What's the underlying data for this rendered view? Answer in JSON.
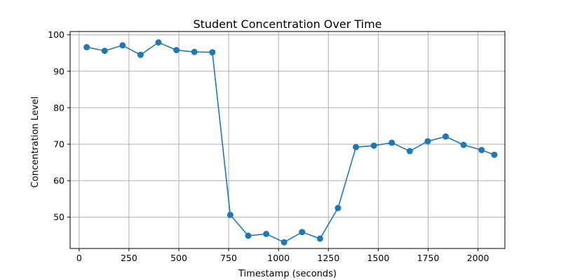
{
  "chart_data": {
    "type": "line",
    "title": "Student Concentration Over Time",
    "xlabel": "Timestamp (seconds)",
    "ylabel": "Concentration Level",
    "xlim": [
      -45,
      2135
    ],
    "ylim": [
      41.4,
      100.9
    ],
    "x_ticks": [
      0,
      250,
      500,
      750,
      1000,
      1250,
      1500,
      1750,
      2000
    ],
    "y_ticks": [
      50,
      60,
      70,
      80,
      90,
      100
    ],
    "grid": true,
    "legend": "none",
    "colors": {
      "line": "#1f77b4",
      "grid": "#b0b0b0"
    },
    "series": [
      {
        "marker": "circle",
        "x": [
          38,
          128,
          218,
          308,
          398,
          488,
          578,
          668,
          758,
          848,
          938,
          1028,
          1118,
          1208,
          1298,
          1388,
          1478,
          1568,
          1658,
          1748,
          1838,
          1928,
          2018,
          2082
        ],
        "y": [
          96.6,
          95.6,
          97.1,
          94.5,
          97.9,
          95.8,
          95.3,
          95.2,
          50.6,
          44.9,
          45.4,
          43.1,
          45.9,
          44.1,
          52.5,
          69.2,
          69.6,
          70.4,
          68.1,
          70.8,
          72.1,
          69.8,
          68.4,
          67.1
        ]
      }
    ]
  }
}
